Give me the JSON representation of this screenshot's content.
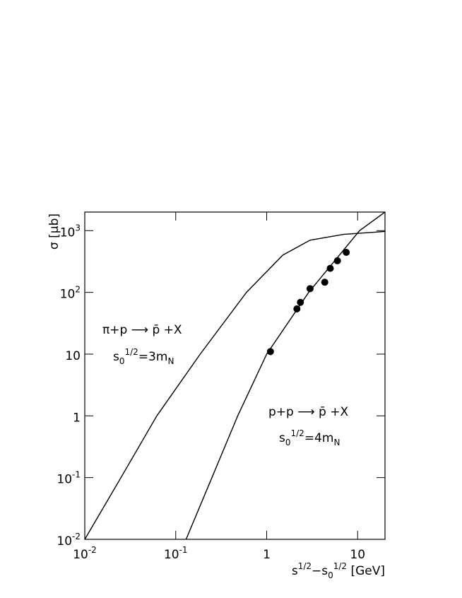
{
  "chart_data": {
    "type": "scatter",
    "xscale": "log",
    "yscale": "log",
    "xlim": [
      0.01,
      20
    ],
    "ylim": [
      0.01,
      2000
    ],
    "xticks": [
      {
        "value": 0.01,
        "label": "10",
        "exp": "-2"
      },
      {
        "value": 0.1,
        "label": "10",
        "exp": "-1"
      },
      1,
      10
    ],
    "yticks": [
      {
        "value": 0.01,
        "label": "10",
        "exp": "-2"
      },
      {
        "value": 0.1,
        "label": "10",
        "exp": "-1"
      },
      1,
      10,
      {
        "value": 100,
        "label": "10",
        "exp": "2"
      },
      {
        "value": 1000,
        "label": "10",
        "exp": "3"
      }
    ],
    "ylabel": "σ [μb]",
    "xlabel": [
      {
        "t": "s",
        "style": ""
      },
      {
        "t": "1/2",
        "style": "sup"
      },
      {
        "t": "−s",
        "style": ""
      },
      {
        "t": "0",
        "style": "sub"
      },
      {
        "t": "1/2",
        "style": "sup"
      },
      {
        "t": "  [GeV]",
        "style": ""
      }
    ],
    "series": [
      {
        "kind": "line",
        "color": "#000000",
        "x": [
          0.01,
          0.025,
          0.062,
          0.186,
          0.6,
          1.5,
          3,
          7,
          20
        ],
        "y": [
          0.01,
          0.1,
          1,
          10,
          100,
          400,
          700,
          870,
          970
        ]
      },
      {
        "kind": "line",
        "color": "#000000",
        "x": [
          0.13,
          0.25,
          0.48,
          1.0,
          2.9,
          10.5,
          20
        ],
        "y": [
          0.01,
          0.1,
          1,
          10,
          100,
          1000,
          2000
        ]
      },
      {
        "kind": "scatter",
        "color": "#000000",
        "x": [
          1.1,
          2.15,
          2.35,
          3.0,
          4.35,
          5.0,
          6.0,
          7.5
        ],
        "y": [
          11,
          54,
          69,
          115,
          146,
          245,
          325,
          445
        ]
      }
    ],
    "annotations": [
      {
        "lines": [
          [
            {
              "t": "π+p ⟶ p̄ +X",
              "style": ""
            }
          ],
          [
            {
              "t": "s",
              "style": ""
            },
            {
              "t": "0",
              "style": "sub"
            },
            {
              "t": "1/2",
              "style": "sup"
            },
            {
              "t": "=3m",
              "style": ""
            },
            {
              "t": "N",
              "style": "sub"
            }
          ]
        ]
      },
      {
        "lines": [
          [
            {
              "t": "p+p ⟶ p̄ +X",
              "style": ""
            }
          ],
          [
            {
              "t": "s",
              "style": ""
            },
            {
              "t": "0",
              "style": "sub"
            },
            {
              "t": "1/2",
              "style": "sup"
            },
            {
              "t": "=4m",
              "style": ""
            },
            {
              "t": "N",
              "style": "sub"
            }
          ]
        ]
      }
    ]
  }
}
